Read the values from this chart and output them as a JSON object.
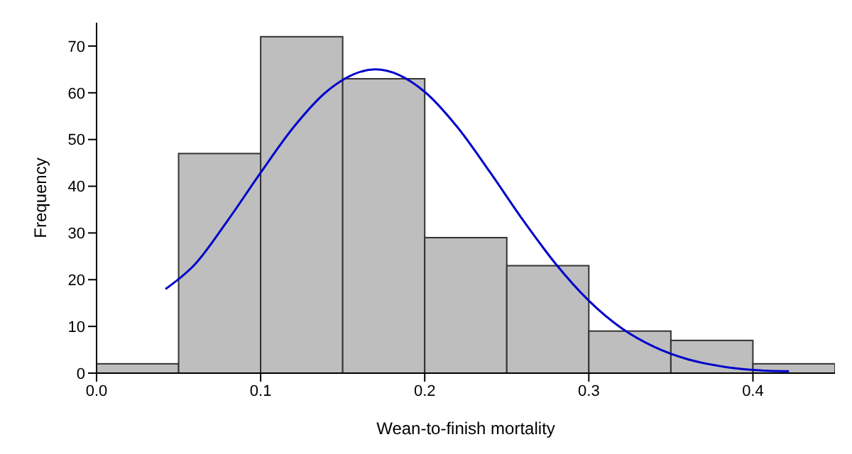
{
  "chart_data": {
    "type": "histogram",
    "xlabel": "Wean-to-finish mortality",
    "ylabel": "Frequency",
    "bins": [
      0,
      0.05,
      0.1,
      0.15,
      0.2,
      0.25,
      0.3,
      0.35,
      0.4,
      0.45
    ],
    "values": [
      2,
      47,
      72,
      63,
      29,
      23,
      9,
      7,
      2
    ],
    "color": "#bebebe",
    "series": [
      {
        "type": "line",
        "color": "#0000cc",
        "x": [
          0.042,
          0.06,
          0.08,
          0.1,
          0.12,
          0.14,
          0.17,
          0.2,
          0.22,
          0.24,
          0.26,
          0.28,
          0.3,
          0.32,
          0.34,
          0.36,
          0.38,
          0.4,
          0.422
        ],
        "values": [
          18,
          23.3,
          32.7,
          42.9,
          52.6,
          60.2,
          65,
          60.2,
          52.6,
          42.9,
          32.7,
          23.3,
          15.5,
          9.6,
          5.6,
          3,
          1.5,
          0.7,
          0.4
        ]
      }
    ],
    "xlim": [
      0,
      0.45
    ],
    "ylim": [
      0,
      75
    ],
    "xticks": [
      {
        "value": 0,
        "label": "0.0"
      },
      0.1,
      0.2,
      0.3,
      0.4
    ],
    "yticks": [
      0,
      10,
      20,
      30,
      40,
      50,
      60,
      70
    ],
    "grid": false,
    "legend": false
  }
}
